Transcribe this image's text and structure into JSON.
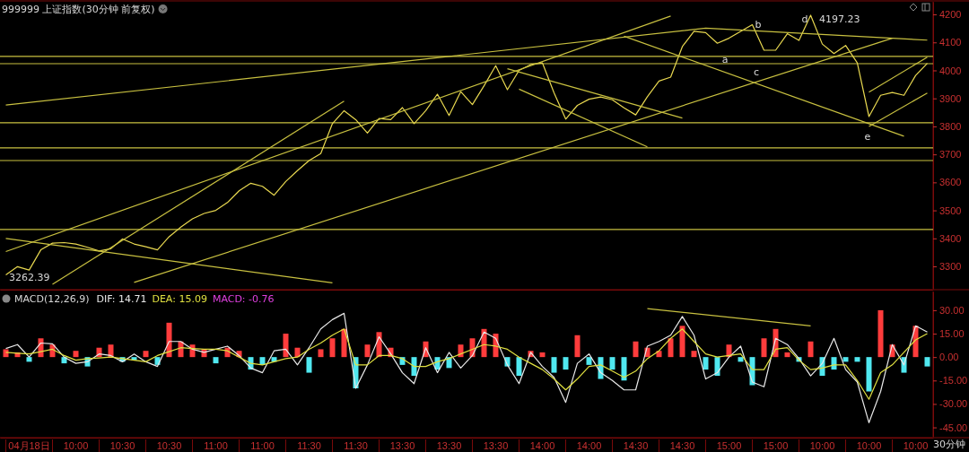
{
  "chart_data": [
    {
      "type": "line",
      "title": "999999 上证指数(30分钟 前复权)",
      "categories": [
        null,
        null,
        null,
        null,
        null,
        null,
        null,
        null,
        null,
        null,
        null,
        null,
        null,
        null,
        null,
        null,
        null,
        null,
        null,
        null,
        null,
        null,
        null,
        null,
        null,
        null,
        null,
        null,
        null,
        null,
        null,
        null,
        null,
        null,
        null,
        null,
        null,
        null,
        null,
        null,
        null,
        null,
        null,
        null,
        null,
        null,
        null,
        null,
        null,
        null,
        null,
        null,
        null,
        null,
        null,
        null,
        null,
        null,
        null,
        null,
        null,
        null,
        null,
        null,
        null,
        null,
        null,
        null,
        null,
        null,
        null,
        null,
        null,
        null,
        null,
        null,
        null,
        null,
        null,
        null
      ],
      "ylim": [
        3220,
        4245
      ],
      "yticks": [
        3300,
        3400,
        3500,
        3600,
        3700,
        3800,
        3900,
        4000,
        4100,
        4200
      ],
      "tick_labels": "y",
      "series": [
        {
          "color": "#e8d850",
          "values": [
            3270,
            3299,
            3287,
            3359,
            3383,
            3385,
            3380,
            3368,
            3355,
            3363,
            3398,
            3380,
            3370,
            3359,
            3406,
            3440,
            3470,
            3489,
            3500,
            3528,
            3570,
            3597,
            3586,
            3554,
            3603,
            3642,
            3678,
            3703,
            3810,
            3856,
            3824,
            3776,
            3828,
            3824,
            3867,
            3810,
            3856,
            3915,
            3839,
            3924,
            3878,
            3945,
            4017,
            3931,
            4000,
            4021,
            4027,
            3920,
            3826,
            3875,
            3897,
            3905,
            3895,
            3866,
            3841,
            3906,
            3962,
            3976,
            4085,
            4140,
            4135,
            4097,
            4115,
            4139,
            4163,
            4072,
            4072,
            4131,
            4107,
            4197,
            4094,
            4060,
            4089,
            4027,
            3835,
            3911,
            3921,
            3911,
            3982,
            4025
          ]
        },
        {
          "color": "#c8c040",
          "values": [
            3876,
            null,
            null,
            null,
            null,
            null,
            null,
            null,
            null,
            null,
            null,
            null,
            null,
            null,
            null,
            null,
            null,
            null,
            null,
            null,
            null,
            null,
            null,
            null,
            null,
            null,
            null,
            null,
            null,
            null,
            null,
            null,
            null,
            null,
            null,
            null,
            null,
            null,
            null,
            null,
            null,
            null,
            null,
            null,
            null,
            null,
            null,
            null,
            null,
            null,
            null,
            null,
            null,
            null,
            null,
            null,
            null,
            null,
            null,
            null,
            4151,
            null,
            null,
            null,
            null,
            null,
            null,
            null,
            null,
            null,
            null,
            null,
            null,
            null,
            null,
            null,
            null,
            null,
            null,
            4108
          ]
        },
        {
          "color": "#c8c040",
          "values": [
            3353,
            null,
            null,
            null,
            null,
            null,
            null,
            null,
            null,
            null,
            null,
            null,
            null,
            null,
            null,
            null,
            null,
            null,
            null,
            null,
            null,
            null,
            null,
            null,
            null,
            null,
            null,
            null,
            null,
            null,
            null,
            null,
            null,
            null,
            null,
            null,
            null,
            null,
            null,
            null,
            null,
            null,
            null,
            null,
            null,
            null,
            null,
            null,
            null,
            null,
            null,
            null,
            null,
            null,
            null,
            null,
            null,
            4194,
            null,
            null,
            null,
            null,
            null,
            null,
            null,
            null,
            null,
            null,
            null,
            null,
            null,
            null,
            null,
            null,
            null,
            null,
            null,
            null,
            null,
            null
          ]
        },
        {
          "color": "#c8c040",
          "values": [
            null,
            null,
            null,
            null,
            3236,
            null,
            null,
            null,
            null,
            null,
            null,
            null,
            null,
            null,
            null,
            null,
            null,
            null,
            null,
            null,
            null,
            null,
            null,
            null,
            null,
            null,
            null,
            null,
            null,
            3890,
            null,
            null,
            null,
            null,
            null,
            null,
            null,
            null,
            null,
            null,
            null,
            null,
            null,
            null,
            null,
            null,
            null,
            null,
            null,
            null,
            null,
            null,
            null,
            null,
            null,
            null,
            null,
            null,
            null,
            null,
            null,
            null,
            null,
            null,
            null,
            null,
            null,
            null,
            null,
            null,
            null,
            null,
            null,
            null,
            null,
            null,
            null,
            null,
            null,
            null
          ]
        },
        {
          "color": "#c8c040",
          "values": [
            null,
            null,
            null,
            null,
            null,
            null,
            null,
            null,
            null,
            null,
            null,
            3243,
            null,
            null,
            null,
            null,
            null,
            null,
            null,
            null,
            null,
            null,
            null,
            null,
            null,
            null,
            null,
            null,
            null,
            null,
            null,
            null,
            null,
            null,
            null,
            null,
            null,
            null,
            null,
            null,
            null,
            null,
            null,
            null,
            null,
            null,
            null,
            null,
            null,
            null,
            null,
            null,
            null,
            null,
            null,
            null,
            null,
            null,
            null,
            null,
            null,
            null,
            null,
            null,
            null,
            null,
            null,
            null,
            null,
            null,
            null,
            null,
            null,
            null,
            null,
            null,
            4115,
            null,
            null,
            null
          ]
        },
        {
          "color": "#c8c040",
          "values": [
            3400,
            null,
            null,
            null,
            null,
            null,
            null,
            null,
            null,
            null,
            null,
            null,
            null,
            null,
            null,
            null,
            null,
            null,
            null,
            null,
            null,
            null,
            null,
            null,
            null,
            null,
            null,
            null,
            3241,
            null,
            null,
            null,
            null,
            null,
            null,
            null,
            null,
            null,
            null,
            null,
            null,
            null,
            null,
            null,
            null,
            null,
            null,
            null,
            null,
            null,
            null,
            null,
            null,
            null,
            null,
            null,
            null,
            null,
            null,
            null,
            null,
            null,
            null,
            null,
            null,
            null,
            null,
            null,
            null,
            null,
            null,
            null,
            null,
            null,
            null,
            null,
            null,
            null,
            null,
            null
          ]
        },
        {
          "color": "#c8c040",
          "values": [
            null,
            null,
            null,
            null,
            null,
            null,
            null,
            null,
            null,
            null,
            null,
            null,
            null,
            null,
            null,
            null,
            null,
            null,
            null,
            null,
            null,
            null,
            null,
            null,
            null,
            null,
            null,
            null,
            null,
            null,
            null,
            null,
            null,
            null,
            null,
            null,
            null,
            null,
            null,
            null,
            null,
            null,
            null,
            4006,
            null,
            null,
            null,
            null,
            null,
            null,
            null,
            null,
            null,
            null,
            null,
            null,
            null,
            null,
            3830,
            null,
            null,
            null,
            null,
            null,
            null,
            null,
            null,
            null,
            null,
            null,
            null,
            null,
            null,
            null,
            null,
            null,
            null,
            null,
            null,
            null
          ]
        },
        {
          "color": "#c8c040",
          "values": [
            null,
            null,
            null,
            null,
            null,
            null,
            null,
            null,
            null,
            null,
            null,
            null,
            null,
            null,
            null,
            null,
            null,
            null,
            null,
            null,
            null,
            null,
            null,
            null,
            null,
            null,
            null,
            null,
            null,
            null,
            null,
            null,
            null,
            null,
            null,
            null,
            null,
            null,
            null,
            null,
            null,
            null,
            null,
            null,
            3933,
            null,
            null,
            null,
            null,
            null,
            null,
            null,
            null,
            null,
            null,
            3727,
            null,
            null,
            null,
            null,
            null,
            null,
            null,
            null,
            null,
            null,
            null,
            null,
            null,
            null,
            null,
            null,
            null,
            null,
            null,
            null,
            null,
            null,
            null,
            null
          ]
        },
        {
          "color": "#c8c040",
          "values": [
            null,
            null,
            null,
            null,
            null,
            null,
            null,
            null,
            null,
            null,
            null,
            null,
            null,
            null,
            null,
            null,
            null,
            null,
            null,
            null,
            null,
            null,
            null,
            null,
            null,
            null,
            null,
            null,
            null,
            null,
            null,
            null,
            null,
            null,
            null,
            null,
            null,
            null,
            null,
            null,
            null,
            null,
            null,
            null,
            null,
            null,
            null,
            null,
            null,
            null,
            null,
            null,
            null,
            4122,
            null,
            null,
            null,
            null,
            null,
            null,
            null,
            null,
            null,
            null,
            null,
            null,
            null,
            null,
            null,
            null,
            null,
            null,
            null,
            null,
            null,
            null,
            null,
            3765,
            null,
            null
          ]
        },
        {
          "color": "#c8c040",
          "values": [
            null,
            null,
            null,
            null,
            null,
            null,
            null,
            null,
            null,
            null,
            null,
            null,
            null,
            null,
            null,
            null,
            null,
            null,
            null,
            null,
            null,
            null,
            null,
            null,
            null,
            null,
            null,
            null,
            null,
            null,
            null,
            null,
            null,
            null,
            null,
            null,
            null,
            null,
            null,
            null,
            null,
            null,
            null,
            null,
            null,
            null,
            null,
            null,
            null,
            null,
            null,
            null,
            null,
            null,
            null,
            null,
            null,
            null,
            null,
            null,
            null,
            null,
            null,
            null,
            null,
            null,
            null,
            null,
            null,
            null,
            null,
            null,
            null,
            null,
            3922,
            null,
            null,
            null,
            null,
            4047
          ]
        },
        {
          "color": "#c8c040",
          "values": [
            null,
            null,
            null,
            null,
            null,
            null,
            null,
            null,
            null,
            null,
            null,
            null,
            null,
            null,
            null,
            null,
            null,
            null,
            null,
            null,
            null,
            null,
            null,
            null,
            null,
            null,
            null,
            null,
            null,
            null,
            null,
            null,
            null,
            null,
            null,
            null,
            null,
            null,
            null,
            null,
            null,
            null,
            null,
            null,
            null,
            null,
            null,
            null,
            null,
            null,
            null,
            null,
            null,
            null,
            null,
            null,
            null,
            null,
            null,
            null,
            null,
            null,
            null,
            null,
            null,
            null,
            null,
            null,
            null,
            null,
            null,
            null,
            null,
            null,
            3800,
            null,
            null,
            null,
            null,
            3919
          ]
        }
      ],
      "ref_lines": [
        {
          "axis": "y",
          "value": 4050,
          "color": "#c8c040"
        },
        {
          "axis": "y",
          "value": 4024,
          "color": "#c8c040"
        },
        {
          "axis": "y",
          "value": 3813,
          "color": "#c8c040"
        },
        {
          "axis": "y",
          "value": 3723,
          "color": "#c8c040"
        },
        {
          "axis": "y",
          "value": 3678,
          "color": "#c8c040"
        },
        {
          "axis": "y",
          "value": 3432,
          "color": "#c8c040"
        }
      ],
      "annotations": [
        "3262.39",
        "4197.23",
        "a",
        "b",
        "c",
        "d",
        "e"
      ]
    },
    {
      "type": "bar",
      "title": "MACD(12,26,9)",
      "categories": [
        null,
        null,
        "04月18日",
        null,
        null,
        null,
        "10:00",
        null,
        null,
        null,
        "10:30",
        null,
        null,
        null,
        "10:30",
        null,
        null,
        null,
        "11:00",
        null,
        null,
        null,
        "11:00",
        null,
        null,
        null,
        "11:30",
        null,
        null,
        null,
        "11:30",
        null,
        null,
        null,
        "13:30",
        null,
        null,
        null,
        "13:30",
        null,
        null,
        null,
        "13:30",
        null,
        null,
        null,
        "14:00",
        null,
        null,
        null,
        "14:00",
        null,
        null,
        null,
        "14:30",
        null,
        null,
        null,
        "14:30",
        null,
        null,
        null,
        "15:00",
        null,
        null,
        null,
        "15:00",
        null,
        null,
        null,
        "10:00",
        null,
        null,
        null,
        "10:00",
        null,
        null,
        null,
        "10:00",
        null
      ],
      "ylim": [
        -51,
        42
      ],
      "yticks": [
        {
          "value": 30,
          "label": "30.00"
        },
        {
          "value": 15,
          "label": "15.00"
        },
        {
          "value": 0,
          "label": "0.00"
        },
        {
          "value": -15,
          "label": "-15.00"
        },
        {
          "value": -30,
          "label": "-30.00"
        },
        {
          "value": -45,
          "label": "-45.00"
        }
      ],
      "series": [
        {
          "values": [
            5,
            3,
            -3,
            12,
            8,
            -4,
            4,
            -6,
            6,
            8,
            -3,
            -2,
            4,
            -5,
            22,
            10,
            8,
            5,
            -4,
            6,
            4,
            -8,
            -5,
            -3,
            15,
            6,
            -10,
            5,
            12,
            18,
            -20,
            8,
            16,
            6,
            -5,
            -12,
            10,
            -8,
            -7,
            8,
            12,
            18,
            15,
            -6,
            -12,
            4,
            3,
            -10,
            -8,
            14,
            -5,
            -14,
            -8,
            -15,
            10,
            6,
            4,
            12,
            20,
            4,
            -8,
            -12,
            8,
            -3,
            -18,
            12,
            18,
            3,
            -3,
            10,
            -12,
            -8,
            -3,
            -3,
            -22,
            30,
            8,
            -10,
            20,
            -6
          ],
          "colors": [
            "#ff3c3c",
            "#ff3c3c",
            "#50e8f0",
            "#ff3c3c",
            "#ff3c3c",
            "#50e8f0",
            "#ff3c3c",
            "#50e8f0",
            "#ff3c3c",
            "#ff3c3c",
            "#50e8f0",
            "#50e8f0",
            "#ff3c3c",
            "#50e8f0",
            "#ff3c3c",
            "#ff3c3c",
            "#ff3c3c",
            "#ff3c3c",
            "#50e8f0",
            "#ff3c3c",
            "#ff3c3c",
            "#50e8f0",
            "#50e8f0",
            "#50e8f0",
            "#ff3c3c",
            "#ff3c3c",
            "#50e8f0",
            "#ff3c3c",
            "#ff3c3c",
            "#ff3c3c",
            "#50e8f0",
            "#ff3c3c",
            "#ff3c3c",
            "#ff3c3c",
            "#50e8f0",
            "#50e8f0",
            "#ff3c3c",
            "#50e8f0",
            "#50e8f0",
            "#ff3c3c",
            "#ff3c3c",
            "#ff3c3c",
            "#ff3c3c",
            "#50e8f0",
            "#50e8f0",
            "#ff3c3c",
            "#ff3c3c",
            "#50e8f0",
            "#50e8f0",
            "#ff3c3c",
            "#50e8f0",
            "#50e8f0",
            "#50e8f0",
            "#50e8f0",
            "#ff3c3c",
            "#ff3c3c",
            "#ff3c3c",
            "#ff3c3c",
            "#ff3c3c",
            "#ff3c3c",
            "#50e8f0",
            "#50e8f0",
            "#ff3c3c",
            "#50e8f0",
            "#50e8f0",
            "#ff3c3c",
            "#ff3c3c",
            "#ff3c3c",
            "#50e8f0",
            "#ff3c3c",
            "#50e8f0",
            "#50e8f0",
            "#50e8f0",
            "#50e8f0",
            "#50e8f0",
            "#ff3c3c",
            "#ff3c3c",
            "#50e8f0",
            "#ff3c3c",
            "#50e8f0"
          ]
        },
        {
          "type": "line",
          "color": "#e8e8e8",
          "values": [
            5.5,
            8,
            0,
            9,
            8.5,
            0,
            -4,
            -3,
            2,
            1,
            -3,
            2,
            -3,
            -6,
            10,
            10,
            5,
            3,
            5,
            7,
            1,
            -7,
            -10,
            4,
            5,
            -5,
            6,
            18,
            24,
            28,
            -20,
            -5,
            13,
            2,
            -10,
            -17,
            6,
            -10,
            3,
            -7,
            1,
            16,
            12,
            -5,
            -17,
            3,
            -6,
            -13,
            -29,
            -4,
            2,
            -10,
            -15,
            -21,
            -21,
            7,
            10,
            14,
            26,
            14,
            -14,
            -10,
            0,
            7,
            -16,
            -19,
            12,
            8,
            -1,
            -12,
            -4,
            12,
            -8,
            -16,
            -42,
            -22,
            8,
            -5,
            20,
            16
          ]
        },
        {
          "type": "line",
          "color": "#e0e040",
          "values": [
            3,
            2.5,
            2,
            3.5,
            5,
            1,
            -2,
            -1,
            -0.5,
            0,
            -1,
            -2,
            -3,
            1,
            3.5,
            6,
            5.5,
            5,
            5,
            4,
            0,
            -4,
            -5,
            -3,
            -1,
            0,
            5,
            9,
            14,
            18,
            -5,
            -5,
            1,
            1,
            -1,
            -6,
            -6,
            -3,
            -1,
            2,
            5,
            8,
            7,
            5,
            0,
            -4,
            -8,
            -14,
            -21,
            -14,
            -6,
            -5,
            -9,
            -13,
            -9,
            -1,
            4,
            12,
            18,
            10,
            2,
            0,
            1,
            2,
            -8,
            -8,
            5,
            6,
            -2,
            -8,
            -7,
            -5,
            -5,
            -15,
            -27,
            -10,
            -5,
            3,
            11,
            15
          ]
        },
        {
          "type": "line",
          "color": "#c8c040",
          "values": [
            null,
            null,
            null,
            null,
            null,
            null,
            null,
            null,
            null,
            null,
            null,
            null,
            null,
            null,
            null,
            null,
            null,
            null,
            null,
            null,
            null,
            null,
            null,
            null,
            null,
            null,
            null,
            null,
            null,
            null,
            null,
            null,
            null,
            null,
            null,
            null,
            null,
            null,
            null,
            null,
            null,
            null,
            null,
            null,
            null,
            null,
            null,
            null,
            null,
            null,
            null,
            null,
            null,
            null,
            null,
            31,
            null,
            null,
            null,
            null,
            null,
            null,
            null,
            null,
            null,
            null,
            null,
            null,
            null,
            20,
            null,
            null,
            null,
            null,
            null,
            null,
            null,
            null,
            null,
            null
          ]
        }
      ],
      "annotations": [
        "DIF: 14.71",
        "DEA: 15.09",
        "MACD: -0.76",
        "30分钟"
      ]
    }
  ]
}
